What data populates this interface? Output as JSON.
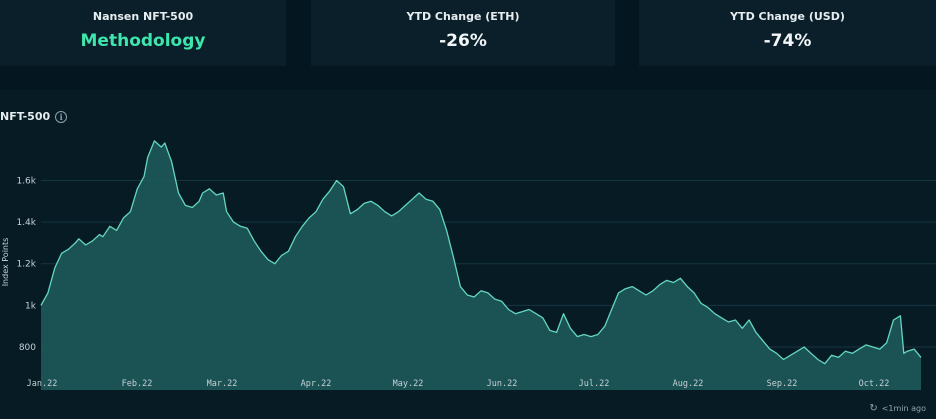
{
  "cards": [
    {
      "label": "Nansen NFT-500",
      "value": "Methodology"
    },
    {
      "label": "YTD Change (ETH)",
      "value": "-26%"
    },
    {
      "label": "YTD Change (USD)",
      "value": "-74%"
    }
  ],
  "chart_title": "NFT-500",
  "info_icon": "info-icon",
  "status_text": "<1min ago",
  "refresh_icon": "refresh-icon",
  "colors": {
    "line": "#63d7c0",
    "fill": "#1e5c5d",
    "accent": "#3ee6ad",
    "grid": "#173541"
  },
  "chart_data": {
    "type": "area",
    "title": "NFT-500",
    "xlabel": "",
    "ylabel": "Index Points",
    "ylim": [
      680,
      1900
    ],
    "yticks": [
      800,
      1000,
      1200,
      1400,
      1600
    ],
    "ytick_labels": [
      "800",
      "1k",
      "1.2k",
      "1.4k",
      "1.6k"
    ],
    "xticks": [
      "Jan.22",
      "Feb.22",
      "Mar.22",
      "Apr.22",
      "May.22",
      "Jun.22",
      "Jul.22",
      "Aug.22",
      "Sep.22",
      "Oct.22"
    ],
    "grid": true,
    "series": [
      {
        "values": [
          [
            0,
            1000
          ],
          [
            2,
            1060
          ],
          [
            4,
            1180
          ],
          [
            6,
            1250
          ],
          [
            8,
            1270
          ],
          [
            10,
            1300
          ],
          [
            11,
            1320
          ],
          [
            13,
            1290
          ],
          [
            15,
            1310
          ],
          [
            17,
            1340
          ],
          [
            18,
            1330
          ],
          [
            20,
            1380
          ],
          [
            22,
            1360
          ],
          [
            24,
            1420
          ],
          [
            26,
            1450
          ],
          [
            28,
            1560
          ],
          [
            30,
            1620
          ],
          [
            31,
            1710
          ],
          [
            33,
            1790
          ],
          [
            35,
            1760
          ],
          [
            36,
            1780
          ],
          [
            38,
            1690
          ],
          [
            40,
            1540
          ],
          [
            42,
            1480
          ],
          [
            44,
            1470
          ],
          [
            46,
            1500
          ],
          [
            47,
            1540
          ],
          [
            49,
            1560
          ],
          [
            51,
            1530
          ],
          [
            53,
            1540
          ],
          [
            54,
            1450
          ],
          [
            56,
            1400
          ],
          [
            58,
            1380
          ],
          [
            60,
            1370
          ],
          [
            62,
            1310
          ],
          [
            64,
            1260
          ],
          [
            66,
            1220
          ],
          [
            68,
            1200
          ],
          [
            70,
            1240
          ],
          [
            72,
            1260
          ],
          [
            74,
            1330
          ],
          [
            76,
            1380
          ],
          [
            78,
            1420
          ],
          [
            80,
            1450
          ],
          [
            82,
            1510
          ],
          [
            84,
            1550
          ],
          [
            86,
            1600
          ],
          [
            88,
            1570
          ],
          [
            90,
            1440
          ],
          [
            92,
            1460
          ],
          [
            94,
            1490
          ],
          [
            96,
            1500
          ],
          [
            98,
            1480
          ],
          [
            100,
            1450
          ],
          [
            102,
            1430
          ],
          [
            104,
            1450
          ],
          [
            106,
            1480
          ],
          [
            108,
            1510
          ],
          [
            110,
            1540
          ],
          [
            112,
            1510
          ],
          [
            114,
            1500
          ],
          [
            116,
            1460
          ],
          [
            118,
            1360
          ],
          [
            120,
            1230
          ],
          [
            122,
            1090
          ],
          [
            124,
            1050
          ],
          [
            126,
            1040
          ],
          [
            128,
            1070
          ],
          [
            130,
            1060
          ],
          [
            132,
            1030
          ],
          [
            134,
            1020
          ],
          [
            136,
            980
          ],
          [
            138,
            960
          ],
          [
            140,
            970
          ],
          [
            142,
            980
          ],
          [
            144,
            960
          ],
          [
            146,
            940
          ],
          [
            148,
            880
          ],
          [
            150,
            870
          ],
          [
            152,
            960
          ],
          [
            154,
            890
          ],
          [
            156,
            850
          ],
          [
            158,
            860
          ],
          [
            160,
            850
          ],
          [
            162,
            860
          ],
          [
            164,
            900
          ],
          [
            166,
            980
          ],
          [
            168,
            1060
          ],
          [
            170,
            1080
          ],
          [
            172,
            1090
          ],
          [
            174,
            1070
          ],
          [
            176,
            1050
          ],
          [
            178,
            1070
          ],
          [
            180,
            1100
          ],
          [
            182,
            1120
          ],
          [
            184,
            1110
          ],
          [
            186,
            1130
          ],
          [
            188,
            1090
          ],
          [
            190,
            1060
          ],
          [
            192,
            1010
          ],
          [
            194,
            990
          ],
          [
            196,
            960
          ],
          [
            198,
            940
          ],
          [
            200,
            920
          ],
          [
            202,
            930
          ],
          [
            204,
            890
          ],
          [
            206,
            930
          ],
          [
            208,
            870
          ],
          [
            210,
            830
          ],
          [
            212,
            790
          ],
          [
            214,
            770
          ],
          [
            216,
            740
          ],
          [
            218,
            760
          ],
          [
            220,
            780
          ],
          [
            222,
            800
          ],
          [
            224,
            770
          ],
          [
            226,
            740
          ],
          [
            228,
            720
          ],
          [
            230,
            760
          ],
          [
            232,
            750
          ],
          [
            234,
            780
          ],
          [
            236,
            770
          ],
          [
            238,
            790
          ],
          [
            240,
            810
          ],
          [
            242,
            800
          ],
          [
            244,
            790
          ],
          [
            246,
            820
          ],
          [
            248,
            930
          ],
          [
            249,
            940
          ],
          [
            250,
            950
          ],
          [
            251,
            770
          ],
          [
            252,
            780
          ],
          [
            254,
            790
          ],
          [
            256,
            750
          ]
        ]
      }
    ]
  }
}
